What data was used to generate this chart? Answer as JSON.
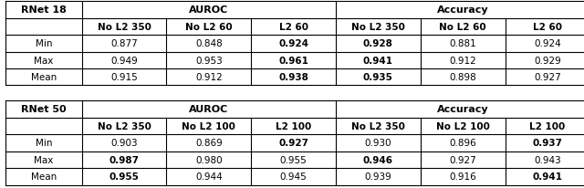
{
  "figsize": [
    6.4,
    2.07
  ],
  "dpi": 100,
  "table1": {
    "title_col0": "RNet 18",
    "header_group1": "AUROC",
    "header_group2": "Accuracy",
    "col_headers": [
      "No L2 350",
      "No L2 60",
      "L2 60",
      "No L2 350",
      "No L2 60",
      "L2 60"
    ],
    "rows": [
      {
        "label": "Min",
        "vals": [
          "0.877",
          "0.848",
          "0.924",
          "0.928",
          "0.881",
          "0.924"
        ],
        "bold": [
          false,
          false,
          true,
          true,
          false,
          false
        ]
      },
      {
        "label": "Max",
        "vals": [
          "0.949",
          "0.953",
          "0.961",
          "0.941",
          "0.912",
          "0.929"
        ],
        "bold": [
          false,
          false,
          true,
          true,
          false,
          false
        ]
      },
      {
        "label": "Mean",
        "vals": [
          "0.915",
          "0.912",
          "0.938",
          "0.935",
          "0.898",
          "0.927"
        ],
        "bold": [
          false,
          false,
          true,
          true,
          false,
          false
        ]
      }
    ]
  },
  "table2": {
    "title_col0": "RNet 50",
    "header_group1": "AUROC",
    "header_group2": "Accuracy",
    "col_headers": [
      "No L2 350",
      "No L2 100",
      "L2 100",
      "No L2 350",
      "No L2 100",
      "L2 100"
    ],
    "rows": [
      {
        "label": "Min",
        "vals": [
          "0.903",
          "0.869",
          "0.927",
          "0.930",
          "0.896",
          "0.937"
        ],
        "bold": [
          false,
          false,
          true,
          false,
          false,
          true
        ]
      },
      {
        "label": "Max",
        "vals": [
          "0.987",
          "0.980",
          "0.955",
          "0.946",
          "0.927",
          "0.943"
        ],
        "bold": [
          true,
          false,
          false,
          true,
          false,
          false
        ]
      },
      {
        "label": "Mean",
        "vals": [
          "0.955",
          "0.944",
          "0.945",
          "0.939",
          "0.916",
          "0.941"
        ],
        "bold": [
          true,
          false,
          false,
          false,
          false,
          true
        ]
      }
    ]
  },
  "bg_color": "#ffffff",
  "line_color": "#000000",
  "font_size": 7.5
}
